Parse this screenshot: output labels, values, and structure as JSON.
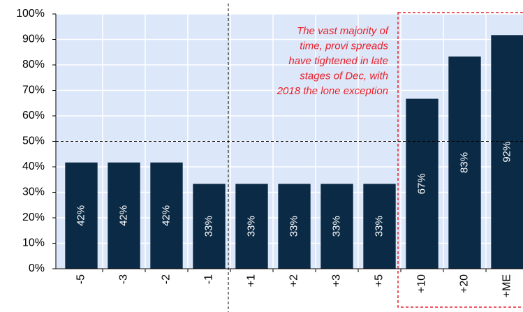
{
  "chart_data": {
    "type": "bar",
    "categories": [
      "-5",
      "-3",
      "-2",
      "-1",
      "+1",
      "+2",
      "+3",
      "+5",
      "+10",
      "+20",
      "+ME"
    ],
    "values": [
      41.7,
      41.7,
      41.7,
      33.3,
      33.3,
      33.3,
      33.3,
      33.3,
      66.7,
      83.3,
      91.7
    ],
    "value_labels": [
      "42%",
      "42%",
      "42%",
      "33%",
      "33%",
      "33%",
      "33%",
      "33%",
      "67%",
      "83%",
      "92%"
    ],
    "color": "#0b2a45",
    "ylim": [
      0,
      100
    ],
    "yticks": [
      {
        "value": 0,
        "label": "0%"
      },
      {
        "value": 10,
        "label": "10%"
      },
      {
        "value": 20,
        "label": "20%"
      },
      {
        "value": 30,
        "label": "30%"
      },
      {
        "value": 40,
        "label": "40%"
      },
      {
        "value": 50,
        "label": "50%"
      },
      {
        "value": 60,
        "label": "60%"
      },
      {
        "value": 70,
        "label": "70%"
      },
      {
        "value": 80,
        "label": "80%"
      },
      {
        "value": 90,
        "label": "90%"
      },
      {
        "value": 100,
        "label": "100%"
      }
    ],
    "grid": true,
    "reference_line": 50,
    "annotation": [
      "The vast majority of",
      "time, provi spreads",
      "have tightened in late",
      "stages of Dec, with",
      "2018 the lone exception"
    ]
  }
}
